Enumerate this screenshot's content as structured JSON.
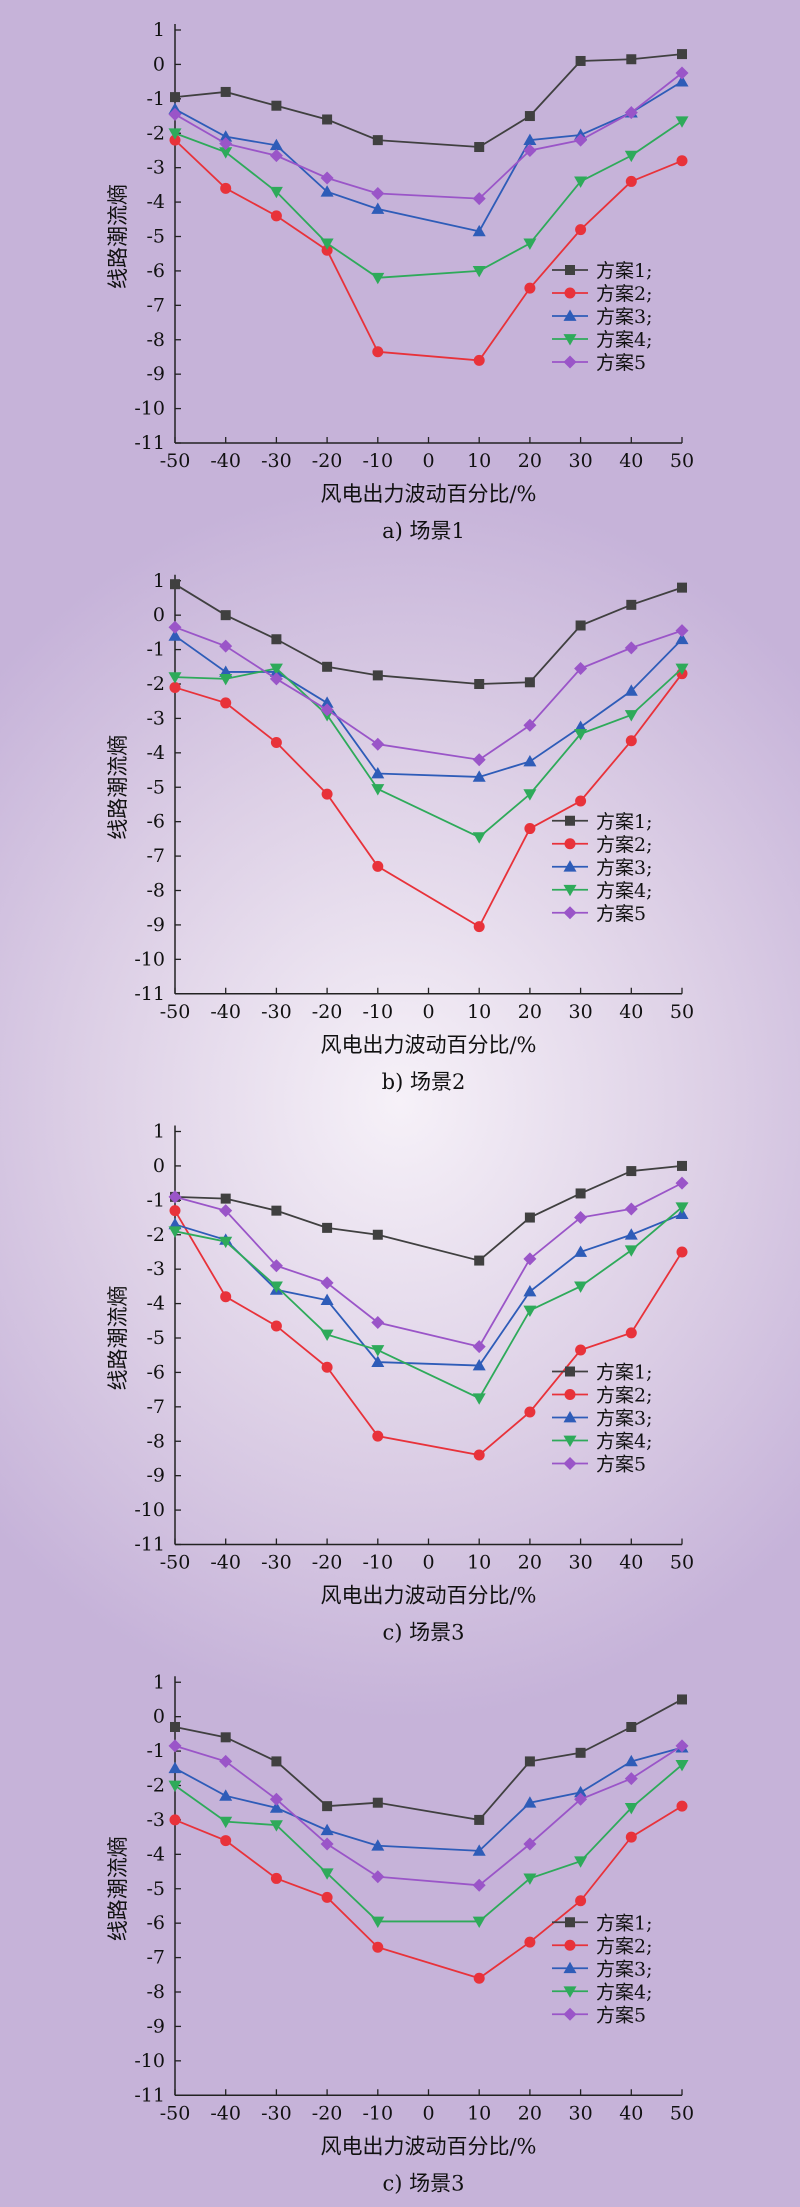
{
  "chart_data": [
    {
      "type": "line",
      "caption": "a) 场景1",
      "xlabel": "风电出力波动百分比/%",
      "ylabel": "线路潮流熵",
      "xlim": [
        -50,
        50
      ],
      "ylim": [
        -11,
        1
      ],
      "x": [
        -50,
        -40,
        -30,
        -20,
        -10,
        10,
        20,
        30,
        40,
        50
      ],
      "xticks": [
        -50,
        -40,
        -30,
        -20,
        -10,
        0,
        10,
        20,
        30,
        40,
        50
      ],
      "yticks": [
        1,
        0,
        -1,
        -2,
        -3,
        -4,
        -5,
        -6,
        -7,
        -8,
        -9,
        -10,
        -11
      ],
      "legend_position": "right",
      "series": [
        {
          "name": "方案1;",
          "color": "#404040",
          "marker": "square",
          "values": [
            -0.95,
            -0.8,
            -1.2,
            -1.6,
            -2.2,
            -2.4,
            -1.5,
            0.1,
            0.15,
            0.3
          ]
        },
        {
          "name": "方案2;",
          "color": "#e8323a",
          "marker": "circle",
          "values": [
            -2.2,
            -3.6,
            -4.4,
            -5.4,
            -8.35,
            -8.6,
            -6.5,
            -4.8,
            -3.4,
            -2.8
          ]
        },
        {
          "name": "方案3;",
          "color": "#2e5cb8",
          "marker": "triangle-up",
          "values": [
            -1.3,
            -2.1,
            -2.35,
            -3.7,
            -4.2,
            -4.85,
            -2.2,
            -2.05,
            -1.4,
            -0.5
          ]
        },
        {
          "name": "方案4;",
          "color": "#2eaa5a",
          "marker": "triangle-down",
          "values": [
            -2.0,
            -2.55,
            -3.7,
            -5.2,
            -6.2,
            -6.0,
            -5.2,
            -3.4,
            -2.65,
            -1.65
          ]
        },
        {
          "name": "方案5",
          "color": "#9a55c8",
          "marker": "diamond",
          "values": [
            -1.45,
            -2.3,
            -2.65,
            -3.3,
            -3.75,
            -3.9,
            -2.5,
            -2.2,
            -1.4,
            -0.25
          ]
        }
      ]
    },
    {
      "type": "line",
      "caption": "b) 场景2",
      "xlabel": "风电出力波动百分比/%",
      "ylabel": "线路潮流熵",
      "xlim": [
        -50,
        50
      ],
      "ylim": [
        -11,
        1
      ],
      "x": [
        -50,
        -40,
        -30,
        -20,
        -10,
        10,
        20,
        30,
        40,
        50
      ],
      "xticks": [
        -50,
        -40,
        -30,
        -20,
        -10,
        0,
        10,
        20,
        30,
        40,
        50
      ],
      "yticks": [
        1,
        0,
        -1,
        -2,
        -3,
        -4,
        -5,
        -6,
        -7,
        -8,
        -9,
        -10,
        -11
      ],
      "legend_position": "right",
      "series": [
        {
          "name": "方案1;",
          "color": "#404040",
          "marker": "square",
          "values": [
            0.9,
            0.0,
            -0.7,
            -1.5,
            -1.75,
            -2.0,
            -1.95,
            -0.3,
            0.3,
            0.8
          ]
        },
        {
          "name": "方案2;",
          "color": "#e8323a",
          "marker": "circle",
          "values": [
            -2.1,
            -2.55,
            -3.7,
            -5.2,
            -7.3,
            -9.05,
            -6.2,
            -5.4,
            -3.65,
            -1.7
          ]
        },
        {
          "name": "方案3;",
          "color": "#2e5cb8",
          "marker": "triangle-up",
          "values": [
            -0.6,
            -1.65,
            -1.65,
            -2.55,
            -4.6,
            -4.7,
            -4.25,
            -3.25,
            -2.2,
            -0.7
          ]
        },
        {
          "name": "方案4;",
          "color": "#2eaa5a",
          "marker": "triangle-down",
          "values": [
            -1.8,
            -1.85,
            -1.55,
            -2.9,
            -5.05,
            -6.45,
            -5.2,
            -3.45,
            -2.9,
            -1.55
          ]
        },
        {
          "name": "方案5",
          "color": "#9a55c8",
          "marker": "diamond",
          "values": [
            -0.35,
            -0.9,
            -1.85,
            -2.75,
            -3.75,
            -4.2,
            -3.2,
            -1.55,
            -0.95,
            -0.45
          ]
        }
      ]
    },
    {
      "type": "line",
      "caption": "c) 场景3",
      "xlabel": "风电出力波动百分比/%",
      "ylabel": "线路潮流熵",
      "xlim": [
        -50,
        50
      ],
      "ylim": [
        -11,
        1
      ],
      "x": [
        -50,
        -40,
        -30,
        -20,
        -10,
        10,
        20,
        30,
        40,
        50
      ],
      "xticks": [
        -50,
        -40,
        -30,
        -20,
        -10,
        0,
        10,
        20,
        30,
        40,
        50
      ],
      "yticks": [
        1,
        0,
        -1,
        -2,
        -3,
        -4,
        -5,
        -6,
        -7,
        -8,
        -9,
        -10,
        -11
      ],
      "legend_position": "right",
      "series": [
        {
          "name": "方案1;",
          "color": "#404040",
          "marker": "square",
          "values": [
            -0.9,
            -0.95,
            -1.3,
            -1.8,
            -2.0,
            -2.75,
            -1.5,
            -0.8,
            -0.15,
            0.0
          ]
        },
        {
          "name": "方案2;",
          "color": "#e8323a",
          "marker": "circle",
          "values": [
            -1.3,
            -3.8,
            -4.65,
            -5.85,
            -7.85,
            -8.4,
            -7.15,
            -5.35,
            -4.85,
            -2.5
          ]
        },
        {
          "name": "方案3;",
          "color": "#2e5cb8",
          "marker": "triangle-up",
          "values": [
            -1.7,
            -2.15,
            -3.6,
            -3.9,
            -5.7,
            -5.8,
            -3.65,
            -2.5,
            -2.0,
            -1.4
          ]
        },
        {
          "name": "方案4;",
          "color": "#2eaa5a",
          "marker": "triangle-down",
          "values": [
            -1.9,
            -2.2,
            -3.5,
            -4.9,
            -5.35,
            -6.75,
            -4.2,
            -3.5,
            -2.45,
            -1.2
          ]
        },
        {
          "name": "方案5",
          "color": "#9a55c8",
          "marker": "diamond",
          "values": [
            -0.9,
            -1.3,
            -2.9,
            -3.4,
            -4.55,
            -5.25,
            -2.7,
            -1.5,
            -1.25,
            -0.5
          ]
        }
      ]
    },
    {
      "type": "line",
      "caption": "c) 场景3",
      "xlabel": "风电出力波动百分比/%",
      "ylabel": "线路潮流熵",
      "xlim": [
        -50,
        50
      ],
      "ylim": [
        -11,
        1
      ],
      "x": [
        -50,
        -40,
        -30,
        -20,
        -10,
        10,
        20,
        30,
        40,
        50
      ],
      "xticks": [
        -50,
        -40,
        -30,
        -20,
        -10,
        0,
        10,
        20,
        30,
        40,
        50
      ],
      "yticks": [
        1,
        0,
        -1,
        -2,
        -3,
        -4,
        -5,
        -6,
        -7,
        -8,
        -9,
        -10,
        -11
      ],
      "legend_position": "right",
      "series": [
        {
          "name": "方案1;",
          "color": "#404040",
          "marker": "square",
          "values": [
            -0.3,
            -0.6,
            -1.3,
            -2.6,
            -2.5,
            -3.0,
            -1.3,
            -1.05,
            -0.3,
            0.5
          ]
        },
        {
          "name": "方案2;",
          "color": "#e8323a",
          "marker": "circle",
          "values": [
            -3.0,
            -3.6,
            -4.7,
            -5.25,
            -6.7,
            -7.6,
            -6.55,
            -5.35,
            -3.5,
            -2.6
          ]
        },
        {
          "name": "方案3;",
          "color": "#2e5cb8",
          "marker": "triangle-up",
          "values": [
            -1.5,
            -2.3,
            -2.65,
            -3.3,
            -3.75,
            -3.9,
            -2.5,
            -2.2,
            -1.3,
            -0.9
          ]
        },
        {
          "name": "方案4;",
          "color": "#2eaa5a",
          "marker": "triangle-down",
          "values": [
            -2.0,
            -3.05,
            -3.15,
            -4.55,
            -5.95,
            -5.95,
            -4.7,
            -4.2,
            -2.65,
            -1.4
          ]
        },
        {
          "name": "方案5",
          "color": "#9a55c8",
          "marker": "diamond",
          "values": [
            -0.85,
            -1.3,
            -2.4,
            -3.7,
            -4.65,
            -4.9,
            -3.7,
            -2.4,
            -1.8,
            -0.85
          ]
        }
      ]
    }
  ]
}
